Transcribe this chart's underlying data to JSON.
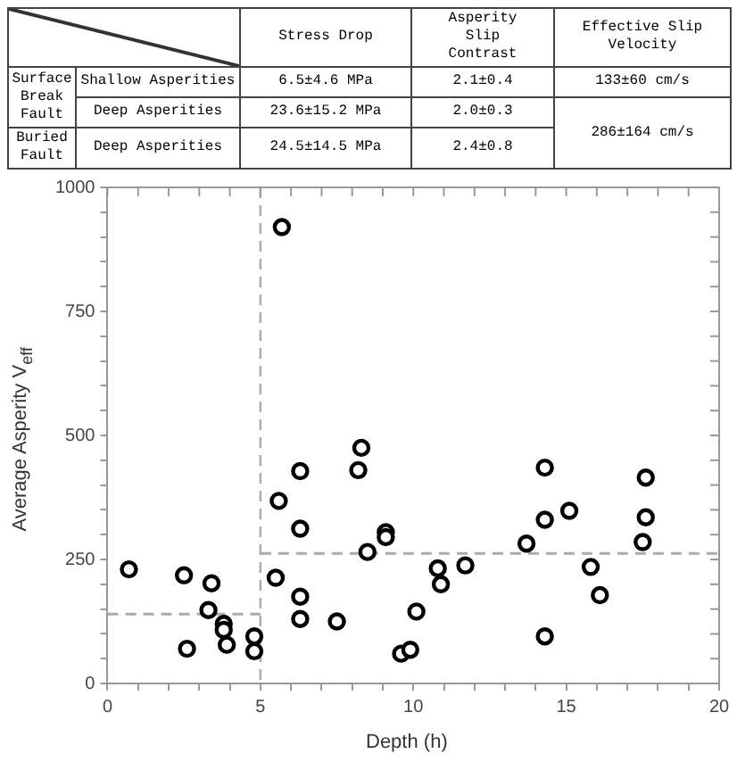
{
  "chart_data": [
    {
      "type": "other",
      "annotations": [
        "Stress Drop",
        "Asperity Slip Contrast",
        "Effective Slip Velocity",
        "Surface Break Fault",
        "Shallow Asperities",
        "6.5±4.6 MPa",
        "2.1±0.4",
        "133±60 cm/s",
        "Deep Asperities",
        "23.6±15.2 MPa",
        "2.0±0.3",
        "286±164 cm/s",
        "Buried Fault",
        "Deep Asperities",
        "24.5±14.5 MPa",
        "2.4±0.8"
      ]
    },
    {
      "type": "scatter",
      "xlabel": "Depth (h)",
      "ylabel": "Average Asperity V$_{eff}$",
      "xlim": [
        0,
        20
      ],
      "ylim": [
        0,
        1000
      ],
      "xticks": [
        0,
        {
          "value": 1,
          "label": null
        },
        {
          "value": 2,
          "label": null
        },
        {
          "value": 3,
          "label": null
        },
        {
          "value": 4,
          "label": null
        },
        5,
        {
          "value": 6,
          "label": null
        },
        {
          "value": 7,
          "label": null
        },
        {
          "value": 8,
          "label": null
        },
        {
          "value": 9,
          "label": null
        },
        10,
        {
          "value": 11,
          "label": null
        },
        {
          "value": 12,
          "label": null
        },
        {
          "value": 13,
          "label": null
        },
        {
          "value": 14,
          "label": null
        },
        15,
        {
          "value": 16,
          "label": null
        },
        {
          "value": 17,
          "label": null
        },
        {
          "value": 18,
          "label": null
        },
        {
          "value": 19,
          "label": null
        },
        20
      ],
      "yticks": [
        0,
        {
          "value": 50,
          "label": null
        },
        {
          "value": 100,
          "label": null
        },
        {
          "value": 150,
          "label": null
        },
        {
          "value": 200,
          "label": null
        },
        250,
        {
          "value": 300,
          "label": null
        },
        {
          "value": 350,
          "label": null
        },
        {
          "value": 400,
          "label": null
        },
        {
          "value": 450,
          "label": null
        },
        500,
        {
          "value": 550,
          "label": null
        },
        {
          "value": 600,
          "label": null
        },
        {
          "value": 650,
          "label": null
        },
        {
          "value": 700,
          "label": null
        },
        750,
        {
          "value": 800,
          "label": null
        },
        {
          "value": 850,
          "label": null
        },
        {
          "value": 900,
          "label": null
        },
        {
          "value": 950,
          "label": null
        },
        1000
      ],
      "grid": false,
      "legend": false,
      "marker": "circle",
      "ref_lines": [
        {
          "axis": "x",
          "value": 5,
          "color": "#aaaaaa",
          "line_style": "dashed"
        }
      ],
      "series": [
        {
          "type": "scatter",
          "color": "#000000",
          "x": [
            0.7,
            2.5,
            2.6,
            3.3,
            3.4,
            3.8,
            3.8,
            3.9,
            4.8,
            4.8,
            5.5,
            5.6,
            5.7,
            6.3,
            6.3,
            6.3,
            6.3,
            7.5,
            8.2,
            8.3,
            8.5,
            9.1,
            9.1,
            9.6,
            9.9,
            10.1,
            10.8,
            10.9,
            11.7,
            13.7,
            14.3,
            14.3,
            14.3,
            15.1,
            15.8,
            16.1,
            17.5,
            17.6,
            17.6
          ],
          "values": [
            230,
            218,
            70,
            148,
            202,
            120,
            108,
            78,
            95,
            65,
            213,
            368,
            920,
            428,
            312,
            175,
            130,
            125,
            430,
            475,
            265,
            305,
            295,
            60,
            68,
            145,
            232,
            200,
            238,
            282,
            435,
            330,
            95,
            348,
            235,
            178,
            285,
            415,
            335
          ]
        },
        {
          "type": "line",
          "color": "#aaaaaa",
          "line_style": "dashed",
          "marker": "none",
          "x": [
            0,
            5
          ],
          "values": [
            140,
            140
          ]
        },
        {
          "type": "line",
          "color": "#aaaaaa",
          "line_style": "dashed",
          "marker": "none",
          "x": [
            5,
            20
          ],
          "values": [
            262,
            262
          ]
        }
      ]
    }
  ]
}
